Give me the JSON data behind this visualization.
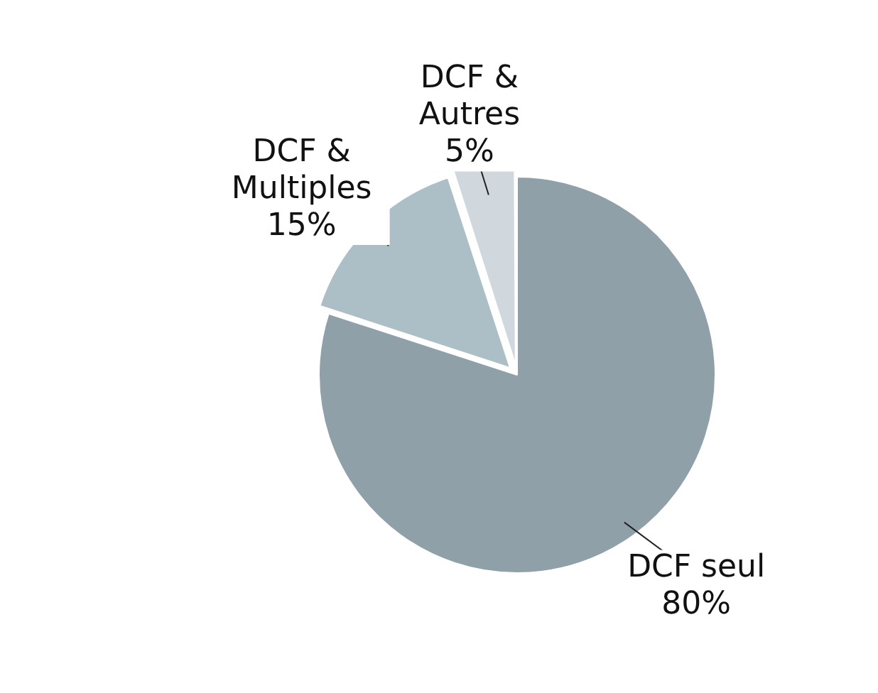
{
  "chart_data": {
    "type": "pie",
    "categories": [
      "DCF seul",
      "DCF & Multiples",
      "DCF & Autres"
    ],
    "values": [
      80,
      15,
      5
    ],
    "value_labels": [
      "80%",
      "15%",
      "5%"
    ],
    "colors": [
      "#8fa0a8",
      "#adbfc6",
      "#d0d8de"
    ],
    "legend": false
  }
}
